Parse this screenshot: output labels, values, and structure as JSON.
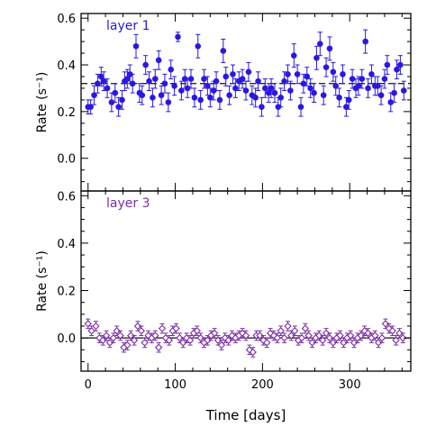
{
  "chart_data": [
    {
      "type": "scatter",
      "panel_label": "layer 1",
      "panel_label_color": "#2a18e0",
      "xlabel": "",
      "ylabel": "Rate (s⁻¹)",
      "xlim": [
        -8,
        370
      ],
      "ylim": [
        -0.14,
        0.62
      ],
      "xticks": [
        0,
        100,
        200,
        300
      ],
      "yticks": [
        0.0,
        0.2,
        0.4,
        0.6
      ],
      "ytick_labels": [
        "0.0",
        "0.2",
        "0.4",
        "0.6"
      ],
      "marker": "filled-circle",
      "color": "#2a18e0",
      "reference_line": {
        "y": 0.32,
        "style": "dashed",
        "color": "#111111"
      },
      "series": [
        {
          "x": [
            0,
            3,
            7,
            11,
            15,
            18,
            22,
            27,
            31,
            35,
            39,
            42,
            45,
            48,
            51,
            55,
            59,
            62,
            66,
            70,
            74,
            77,
            81,
            84,
            88,
            92,
            95,
            99,
            103,
            107,
            111,
            114,
            118,
            122,
            126,
            129,
            133,
            137,
            140,
            144,
            147,
            151,
            155,
            158,
            162,
            166,
            169,
            173,
            177,
            181,
            184,
            188,
            192,
            195,
            199,
            203,
            207,
            210,
            214,
            218,
            221,
            225,
            229,
            232,
            236,
            240,
            244,
            247,
            251,
            255,
            259,
            262,
            266,
            270,
            273,
            277,
            281,
            284,
            288,
            292,
            296,
            299,
            303,
            307,
            310,
            314,
            318,
            321,
            325,
            329,
            332,
            336,
            340,
            343,
            347,
            351,
            354,
            358,
            362
          ],
          "y": [
            0.22,
            0.22,
            0.27,
            0.32,
            0.35,
            0.33,
            0.3,
            0.24,
            0.28,
            0.22,
            0.25,
            0.33,
            0.34,
            0.36,
            0.32,
            0.48,
            0.28,
            0.27,
            0.4,
            0.33,
            0.26,
            0.34,
            0.42,
            0.27,
            0.32,
            0.24,
            0.38,
            0.31,
            0.52,
            0.29,
            0.34,
            0.3,
            0.34,
            0.26,
            0.48,
            0.25,
            0.34,
            0.31,
            0.26,
            0.29,
            0.33,
            0.25,
            0.46,
            0.35,
            0.27,
            0.36,
            0.3,
            0.33,
            0.34,
            0.29,
            0.37,
            0.27,
            0.26,
            0.33,
            0.22,
            0.3,
            0.28,
            0.3,
            0.28,
            0.22,
            0.26,
            0.33,
            0.36,
            0.29,
            0.44,
            0.36,
            0.22,
            0.32,
            0.35,
            0.3,
            0.28,
            0.43,
            0.49,
            0.27,
            0.39,
            0.47,
            0.37,
            0.31,
            0.26,
            0.36,
            0.22,
            0.25,
            0.34,
            0.3,
            0.31,
            0.34,
            0.5,
            0.3,
            0.36,
            0.31,
            0.31,
            0.27,
            0.34,
            0.4,
            0.24,
            0.28,
            0.38,
            0.4,
            0.29
          ],
          "yerr": [
            0.03,
            0.03,
            0.04,
            0.04,
            0.04,
            0.04,
            0.04,
            0.04,
            0.04,
            0.04,
            0.04,
            0.04,
            0.04,
            0.04,
            0.04,
            0.05,
            0.04,
            0.04,
            0.04,
            0.04,
            0.04,
            0.04,
            0.04,
            0.04,
            0.04,
            0.04,
            0.04,
            0.04,
            0.02,
            0.04,
            0.04,
            0.04,
            0.04,
            0.04,
            0.05,
            0.04,
            0.04,
            0.04,
            0.04,
            0.04,
            0.04,
            0.04,
            0.05,
            0.04,
            0.04,
            0.04,
            0.04,
            0.04,
            0.04,
            0.04,
            0.04,
            0.04,
            0.04,
            0.04,
            0.04,
            0.04,
            0.04,
            0.04,
            0.04,
            0.04,
            0.04,
            0.04,
            0.04,
            0.04,
            0.05,
            0.04,
            0.04,
            0.04,
            0.04,
            0.04,
            0.04,
            0.05,
            0.05,
            0.04,
            0.04,
            0.05,
            0.04,
            0.04,
            0.04,
            0.04,
            0.04,
            0.04,
            0.04,
            0.04,
            0.04,
            0.04,
            0.05,
            0.04,
            0.04,
            0.04,
            0.04,
            0.04,
            0.04,
            0.04,
            0.04,
            0.04,
            0.04,
            0.04,
            0.04
          ]
        }
      ]
    },
    {
      "type": "scatter",
      "panel_label": "layer 3",
      "panel_label_color": "#7a2ca6",
      "xlabel": "Time [days]",
      "ylabel": "Rate (s⁻¹)",
      "xlim": [
        -8,
        370
      ],
      "ylim": [
        -0.14,
        0.62
      ],
      "xticks": [
        0,
        100,
        200,
        300
      ],
      "xtick_labels": [
        "0",
        "100",
        "200",
        "300"
      ],
      "yticks": [
        0.0,
        0.2,
        0.4,
        0.6
      ],
      "ytick_labels": [
        "0.0",
        "0.2",
        "0.4",
        "0.6"
      ],
      "marker": "open-diamond",
      "color": "#7a2ca6",
      "reference_line": {
        "y": 0.0,
        "style": "solid",
        "color": "#111111"
      },
      "series": [
        {
          "x": [
            0,
            4,
            9,
            13,
            17,
            21,
            25,
            29,
            33,
            37,
            41,
            45,
            49,
            53,
            57,
            61,
            65,
            69,
            73,
            77,
            81,
            85,
            89,
            93,
            97,
            101,
            105,
            109,
            113,
            117,
            121,
            125,
            129,
            133,
            137,
            141,
            145,
            149,
            153,
            157,
            161,
            165,
            169,
            173,
            177,
            181,
            185,
            189,
            193,
            197,
            201,
            205,
            209,
            213,
            217,
            221,
            225,
            229,
            233,
            237,
            241,
            245,
            249,
            253,
            257,
            261,
            265,
            269,
            273,
            277,
            281,
            285,
            289,
            293,
            297,
            301,
            305,
            309,
            313,
            317,
            321,
            325,
            329,
            333,
            337,
            341,
            345,
            349,
            353,
            357,
            361
          ],
          "y": [
            0.06,
            0.03,
            0.05,
            0.0,
            -0.01,
            0.01,
            -0.02,
            0.0,
            0.03,
            0.01,
            -0.04,
            -0.03,
            0.01,
            -0.01,
            0.05,
            0.03,
            -0.02,
            0.01,
            0.0,
            0.01,
            -0.04,
            0.04,
            0.0,
            -0.01,
            0.03,
            0.04,
            0.0,
            -0.02,
            0.0,
            -0.01,
            0.02,
            0.03,
            0.0,
            -0.02,
            -0.01,
            0.01,
            0.02,
            -0.01,
            -0.03,
            0.0,
            -0.01,
            0.01,
            0.0,
            0.01,
            0.02,
            0.01,
            -0.05,
            -0.06,
            0.01,
            0.01,
            -0.01,
            -0.02,
            0.02,
            0.01,
            0.0,
            0.03,
            0.0,
            0.05,
            0.01,
            0.03,
            -0.01,
            0.0,
            0.04,
            0.01,
            -0.02,
            0.0,
            0.01,
            -0.01,
            0.02,
            0.0,
            -0.02,
            0.0,
            0.01,
            -0.02,
            0.0,
            0.01,
            -0.02,
            0.0,
            0.01,
            0.03,
            0.02,
            0.0,
            0.01,
            -0.02,
            0.0,
            0.06,
            0.04,
            0.03,
            -0.01,
            0.02,
            0.0
          ],
          "yerr": [
            0.02,
            0.02,
            0.02,
            0.02,
            0.02,
            0.02,
            0.02,
            0.02,
            0.02,
            0.02,
            0.02,
            0.02,
            0.02,
            0.02,
            0.02,
            0.02,
            0.02,
            0.02,
            0.02,
            0.02,
            0.02,
            0.02,
            0.02,
            0.02,
            0.02,
            0.02,
            0.02,
            0.02,
            0.02,
            0.02,
            0.02,
            0.02,
            0.02,
            0.02,
            0.02,
            0.02,
            0.02,
            0.02,
            0.02,
            0.02,
            0.02,
            0.02,
            0.02,
            0.02,
            0.02,
            0.02,
            0.02,
            0.02,
            0.02,
            0.02,
            0.02,
            0.02,
            0.02,
            0.02,
            0.02,
            0.02,
            0.02,
            0.02,
            0.02,
            0.02,
            0.02,
            0.02,
            0.02,
            0.02,
            0.02,
            0.02,
            0.02,
            0.02,
            0.02,
            0.02,
            0.02,
            0.02,
            0.02,
            0.02,
            0.02,
            0.02,
            0.02,
            0.02,
            0.02,
            0.02,
            0.02,
            0.02,
            0.02,
            0.02,
            0.02,
            0.02,
            0.02,
            0.02,
            0.02,
            0.02,
            0.02
          ]
        }
      ]
    }
  ]
}
